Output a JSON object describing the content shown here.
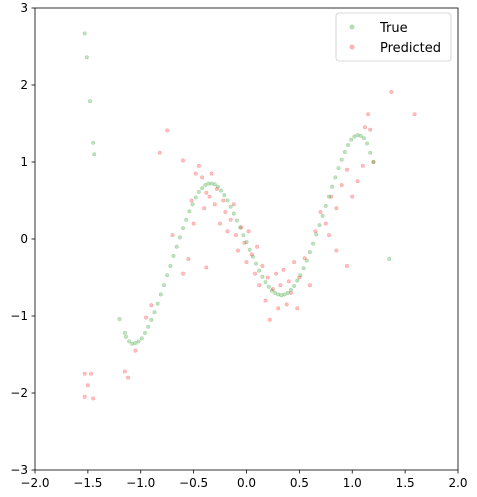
{
  "chart_data": {
    "type": "scatter",
    "title": "",
    "xlabel": "",
    "ylabel": "",
    "xlim": [
      -2.0,
      2.0
    ],
    "ylim": [
      -3,
      3
    ],
    "xticks": [
      "−2.0",
      "−1.5",
      "−1.0",
      "−0.5",
      "0.0",
      "0.5",
      "1.0",
      "1.5",
      "2.0"
    ],
    "yticks": [
      "−3",
      "−2",
      "−1",
      "0",
      "1",
      "2",
      "3"
    ],
    "legend": {
      "position": "top-right",
      "entries": [
        "True",
        "Predicted"
      ]
    },
    "grid": false,
    "series": [
      {
        "name": "True",
        "color": "#2ca02c",
        "alpha": 0.3,
        "points": [
          [
            -1.53,
            2.67
          ],
          [
            -1.51,
            2.36
          ],
          [
            -1.48,
            1.79
          ],
          [
            -1.45,
            1.25
          ],
          [
            -1.44,
            1.1
          ],
          [
            -1.2,
            -1.04
          ],
          [
            -1.15,
            -1.22
          ],
          [
            -1.14,
            -1.27
          ],
          [
            -1.11,
            -1.33
          ],
          [
            -1.08,
            -1.36
          ],
          [
            -1.05,
            -1.35
          ],
          [
            -1.02,
            -1.33
          ],
          [
            -0.99,
            -1.29
          ],
          [
            -0.96,
            -1.22
          ],
          [
            -0.93,
            -1.14
          ],
          [
            -0.9,
            -1.05
          ],
          [
            -0.87,
            -0.95
          ],
          [
            -0.84,
            -0.84
          ],
          [
            -0.81,
            -0.72
          ],
          [
            -0.78,
            -0.6
          ],
          [
            -0.75,
            -0.47
          ],
          [
            -0.72,
            -0.35
          ],
          [
            -0.69,
            -0.22
          ],
          [
            -0.66,
            -0.1
          ],
          [
            -0.63,
            0.02
          ],
          [
            -0.6,
            0.14
          ],
          [
            -0.57,
            0.25
          ],
          [
            -0.54,
            0.36
          ],
          [
            -0.51,
            0.45
          ],
          [
            -0.48,
            0.54
          ],
          [
            -0.45,
            0.61
          ],
          [
            -0.42,
            0.66
          ],
          [
            -0.39,
            0.7
          ],
          [
            -0.36,
            0.72
          ],
          [
            -0.33,
            0.72
          ],
          [
            -0.3,
            0.71
          ],
          [
            -0.27,
            0.68
          ],
          [
            -0.24,
            0.63
          ],
          [
            -0.21,
            0.57
          ],
          [
            -0.18,
            0.5
          ],
          [
            -0.15,
            0.42
          ],
          [
            -0.12,
            0.33
          ],
          [
            -0.09,
            0.24
          ],
          [
            -0.06,
            0.15
          ],
          [
            -0.03,
            0.05
          ],
          [
            0.0,
            -0.04
          ],
          [
            0.03,
            -0.14
          ],
          [
            0.06,
            -0.23
          ],
          [
            0.09,
            -0.32
          ],
          [
            0.12,
            -0.41
          ],
          [
            0.15,
            -0.49
          ],
          [
            0.18,
            -0.56
          ],
          [
            0.21,
            -0.62
          ],
          [
            0.24,
            -0.67
          ],
          [
            0.27,
            -0.7
          ],
          [
            0.3,
            -0.72
          ],
          [
            0.33,
            -0.73
          ],
          [
            0.36,
            -0.72
          ],
          [
            0.39,
            -0.7
          ],
          [
            0.42,
            -0.66
          ],
          [
            0.45,
            -0.61
          ],
          [
            0.48,
            -0.54
          ],
          [
            0.51,
            -0.47
          ],
          [
            0.54,
            -0.38
          ],
          [
            0.57,
            -0.28
          ],
          [
            0.6,
            -0.17
          ],
          [
            0.63,
            -0.06
          ],
          [
            0.66,
            0.06
          ],
          [
            0.69,
            0.18
          ],
          [
            0.72,
            0.3
          ],
          [
            0.75,
            0.43
          ],
          [
            0.78,
            0.55
          ],
          [
            0.81,
            0.68
          ],
          [
            0.84,
            0.8
          ],
          [
            0.87,
            0.92
          ],
          [
            0.9,
            1.03
          ],
          [
            0.93,
            1.13
          ],
          [
            0.96,
            1.22
          ],
          [
            0.99,
            1.29
          ],
          [
            1.02,
            1.33
          ],
          [
            1.05,
            1.35
          ],
          [
            1.08,
            1.34
          ],
          [
            1.11,
            1.31
          ],
          [
            1.14,
            1.24
          ],
          [
            1.17,
            1.12
          ],
          [
            1.2,
            1.0
          ],
          [
            1.35,
            -0.26
          ]
        ]
      },
      {
        "name": "Predicted",
        "color": "#ff0000",
        "alpha": 0.25,
        "points": [
          [
            -1.53,
            -1.75
          ],
          [
            -1.53,
            -2.05
          ],
          [
            -1.5,
            -1.9
          ],
          [
            -1.47,
            -1.75
          ],
          [
            -1.45,
            -2.07
          ],
          [
            -1.15,
            -1.72
          ],
          [
            -1.12,
            -1.8
          ],
          [
            -1.05,
            -1.45
          ],
          [
            -0.95,
            -1.02
          ],
          [
            -0.9,
            -0.86
          ],
          [
            -0.82,
            1.12
          ],
          [
            -0.75,
            1.41
          ],
          [
            -0.6,
            1.02
          ],
          [
            -0.6,
            -0.45
          ],
          [
            -0.55,
            -0.26
          ],
          [
            -0.38,
            -0.37
          ],
          [
            -0.7,
            0.05
          ],
          [
            -0.5,
            0.2
          ],
          [
            -0.52,
            0.5
          ],
          [
            -0.48,
            0.85
          ],
          [
            -0.45,
            0.95
          ],
          [
            -0.42,
            0.8
          ],
          [
            -0.4,
            0.4
          ],
          [
            -0.38,
            0.6
          ],
          [
            -0.35,
            0.55
          ],
          [
            -0.33,
            0.85
          ],
          [
            -0.3,
            0.45
          ],
          [
            -0.28,
            0.65
          ],
          [
            -0.25,
            0.2
          ],
          [
            -0.22,
            0.5
          ],
          [
            -0.2,
            0.35
          ],
          [
            -0.18,
            0.1
          ],
          [
            -0.15,
            0.25
          ],
          [
            -0.12,
            0.45
          ],
          [
            -0.1,
            0.05
          ],
          [
            -0.08,
            -0.15
          ],
          [
            -0.05,
            0.15
          ],
          [
            -0.02,
            -0.05
          ],
          [
            0.0,
            -0.3
          ],
          [
            0.02,
            0.1
          ],
          [
            0.05,
            -0.2
          ],
          [
            0.08,
            -0.45
          ],
          [
            0.1,
            -0.1
          ],
          [
            0.12,
            -0.6
          ],
          [
            0.15,
            -0.35
          ],
          [
            0.18,
            -0.8
          ],
          [
            0.2,
            -0.5
          ],
          [
            0.22,
            -1.05
          ],
          [
            0.25,
            -0.65
          ],
          [
            0.28,
            -0.45
          ],
          [
            0.3,
            -0.9
          ],
          [
            0.32,
            -0.6
          ],
          [
            0.35,
            -0.4
          ],
          [
            0.38,
            -0.85
          ],
          [
            0.4,
            -0.55
          ],
          [
            0.42,
            -0.7
          ],
          [
            0.45,
            -0.3
          ],
          [
            0.48,
            -0.9
          ],
          [
            0.5,
            -0.5
          ],
          [
            0.55,
            -0.25
          ],
          [
            0.6,
            -0.6
          ],
          [
            0.65,
            0.1
          ],
          [
            0.7,
            0.35
          ],
          [
            0.75,
            0.2
          ],
          [
            0.8,
            0.55
          ],
          [
            0.85,
            0.4
          ],
          [
            0.9,
            0.7
          ],
          [
            0.95,
            0.9
          ],
          [
            1.0,
            0.55
          ],
          [
            1.05,
            0.75
          ],
          [
            1.1,
            0.95
          ],
          [
            1.12,
            1.45
          ],
          [
            1.15,
            1.62
          ],
          [
            1.17,
            1.42
          ],
          [
            1.2,
            1.0
          ],
          [
            1.37,
            1.91
          ],
          [
            1.59,
            1.62
          ],
          [
            0.95,
            -0.35
          ],
          [
            0.85,
            -0.15
          ],
          [
            0.78,
            0.05
          ]
        ]
      }
    ]
  }
}
